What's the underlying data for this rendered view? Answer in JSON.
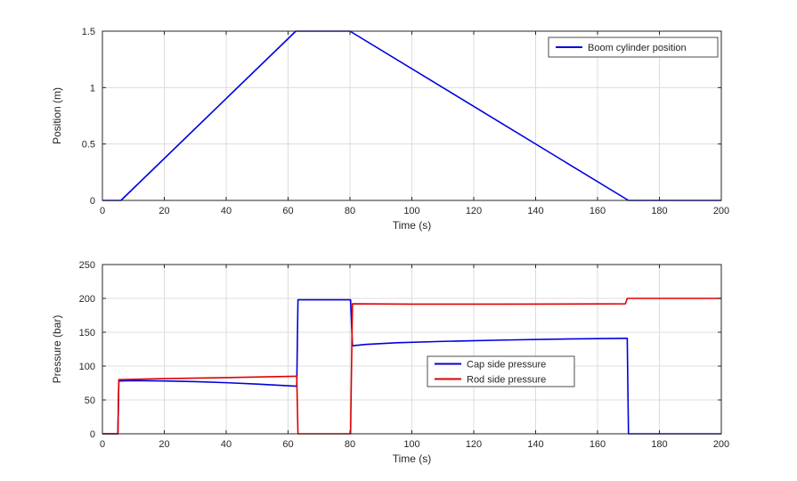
{
  "figure": {
    "background": "#ffffff"
  },
  "style": {
    "grid_color": "#dcdcdc",
    "axis_color": "#262626",
    "legend_border": "#4d4d4d",
    "legend_background": "#ffffff"
  },
  "chart_data": [
    {
      "type": "line",
      "title": "",
      "xlabel": "Time (s)",
      "ylabel": "Position (m)",
      "xlim": [
        0,
        200
      ],
      "ylim": [
        0,
        1.5
      ],
      "xticks": [
        0,
        20,
        40,
        60,
        80,
        100,
        120,
        140,
        160,
        180,
        200
      ],
      "yticks": [
        0,
        0.5,
        1,
        1.5
      ],
      "grid": true,
      "legend_position": "top-right",
      "series": [
        {
          "name": "Boom cylinder position",
          "color": "#0000e0",
          "x": [
            0,
            6,
            62.5,
            80,
            170,
            200
          ],
          "y": [
            0,
            0,
            1.5,
            1.5,
            0,
            0
          ]
        }
      ]
    },
    {
      "type": "line",
      "title": "",
      "xlabel": "Time (s)",
      "ylabel": "Pressure (bar)",
      "xlim": [
        0,
        200
      ],
      "ylim": [
        0,
        250
      ],
      "xticks": [
        0,
        20,
        40,
        60,
        80,
        100,
        120,
        140,
        160,
        180,
        200
      ],
      "yticks": [
        0,
        50,
        100,
        150,
        200,
        250
      ],
      "grid": true,
      "legend_position": "center-right",
      "series": [
        {
          "name": "Cap side pressure",
          "color": "#0000e0",
          "x": [
            0,
            5,
            5.3,
            10,
            20,
            30,
            40,
            50,
            62,
            62.8,
            63.2,
            80.2,
            80.8,
            85,
            95,
            110,
            130,
            150,
            169,
            169.6,
            170,
            200
          ],
          "y": [
            0,
            0,
            78,
            78.5,
            78,
            77,
            75.5,
            73.5,
            70.5,
            70.5,
            198,
            198,
            130,
            132,
            134.5,
            136.5,
            138.5,
            140,
            141,
            141,
            0,
            0
          ]
        },
        {
          "name": "Rod side pressure",
          "color": "#e00000",
          "x": [
            0,
            5,
            5.3,
            20,
            40,
            62,
            62.8,
            63.2,
            80.2,
            80.8,
            100,
            130,
            169,
            169.6,
            170,
            200
          ],
          "y": [
            0,
            0,
            80,
            81.5,
            83,
            85,
            85,
            0,
            0,
            192,
            191.5,
            191.5,
            192,
            200,
            200,
            200
          ]
        }
      ]
    }
  ]
}
